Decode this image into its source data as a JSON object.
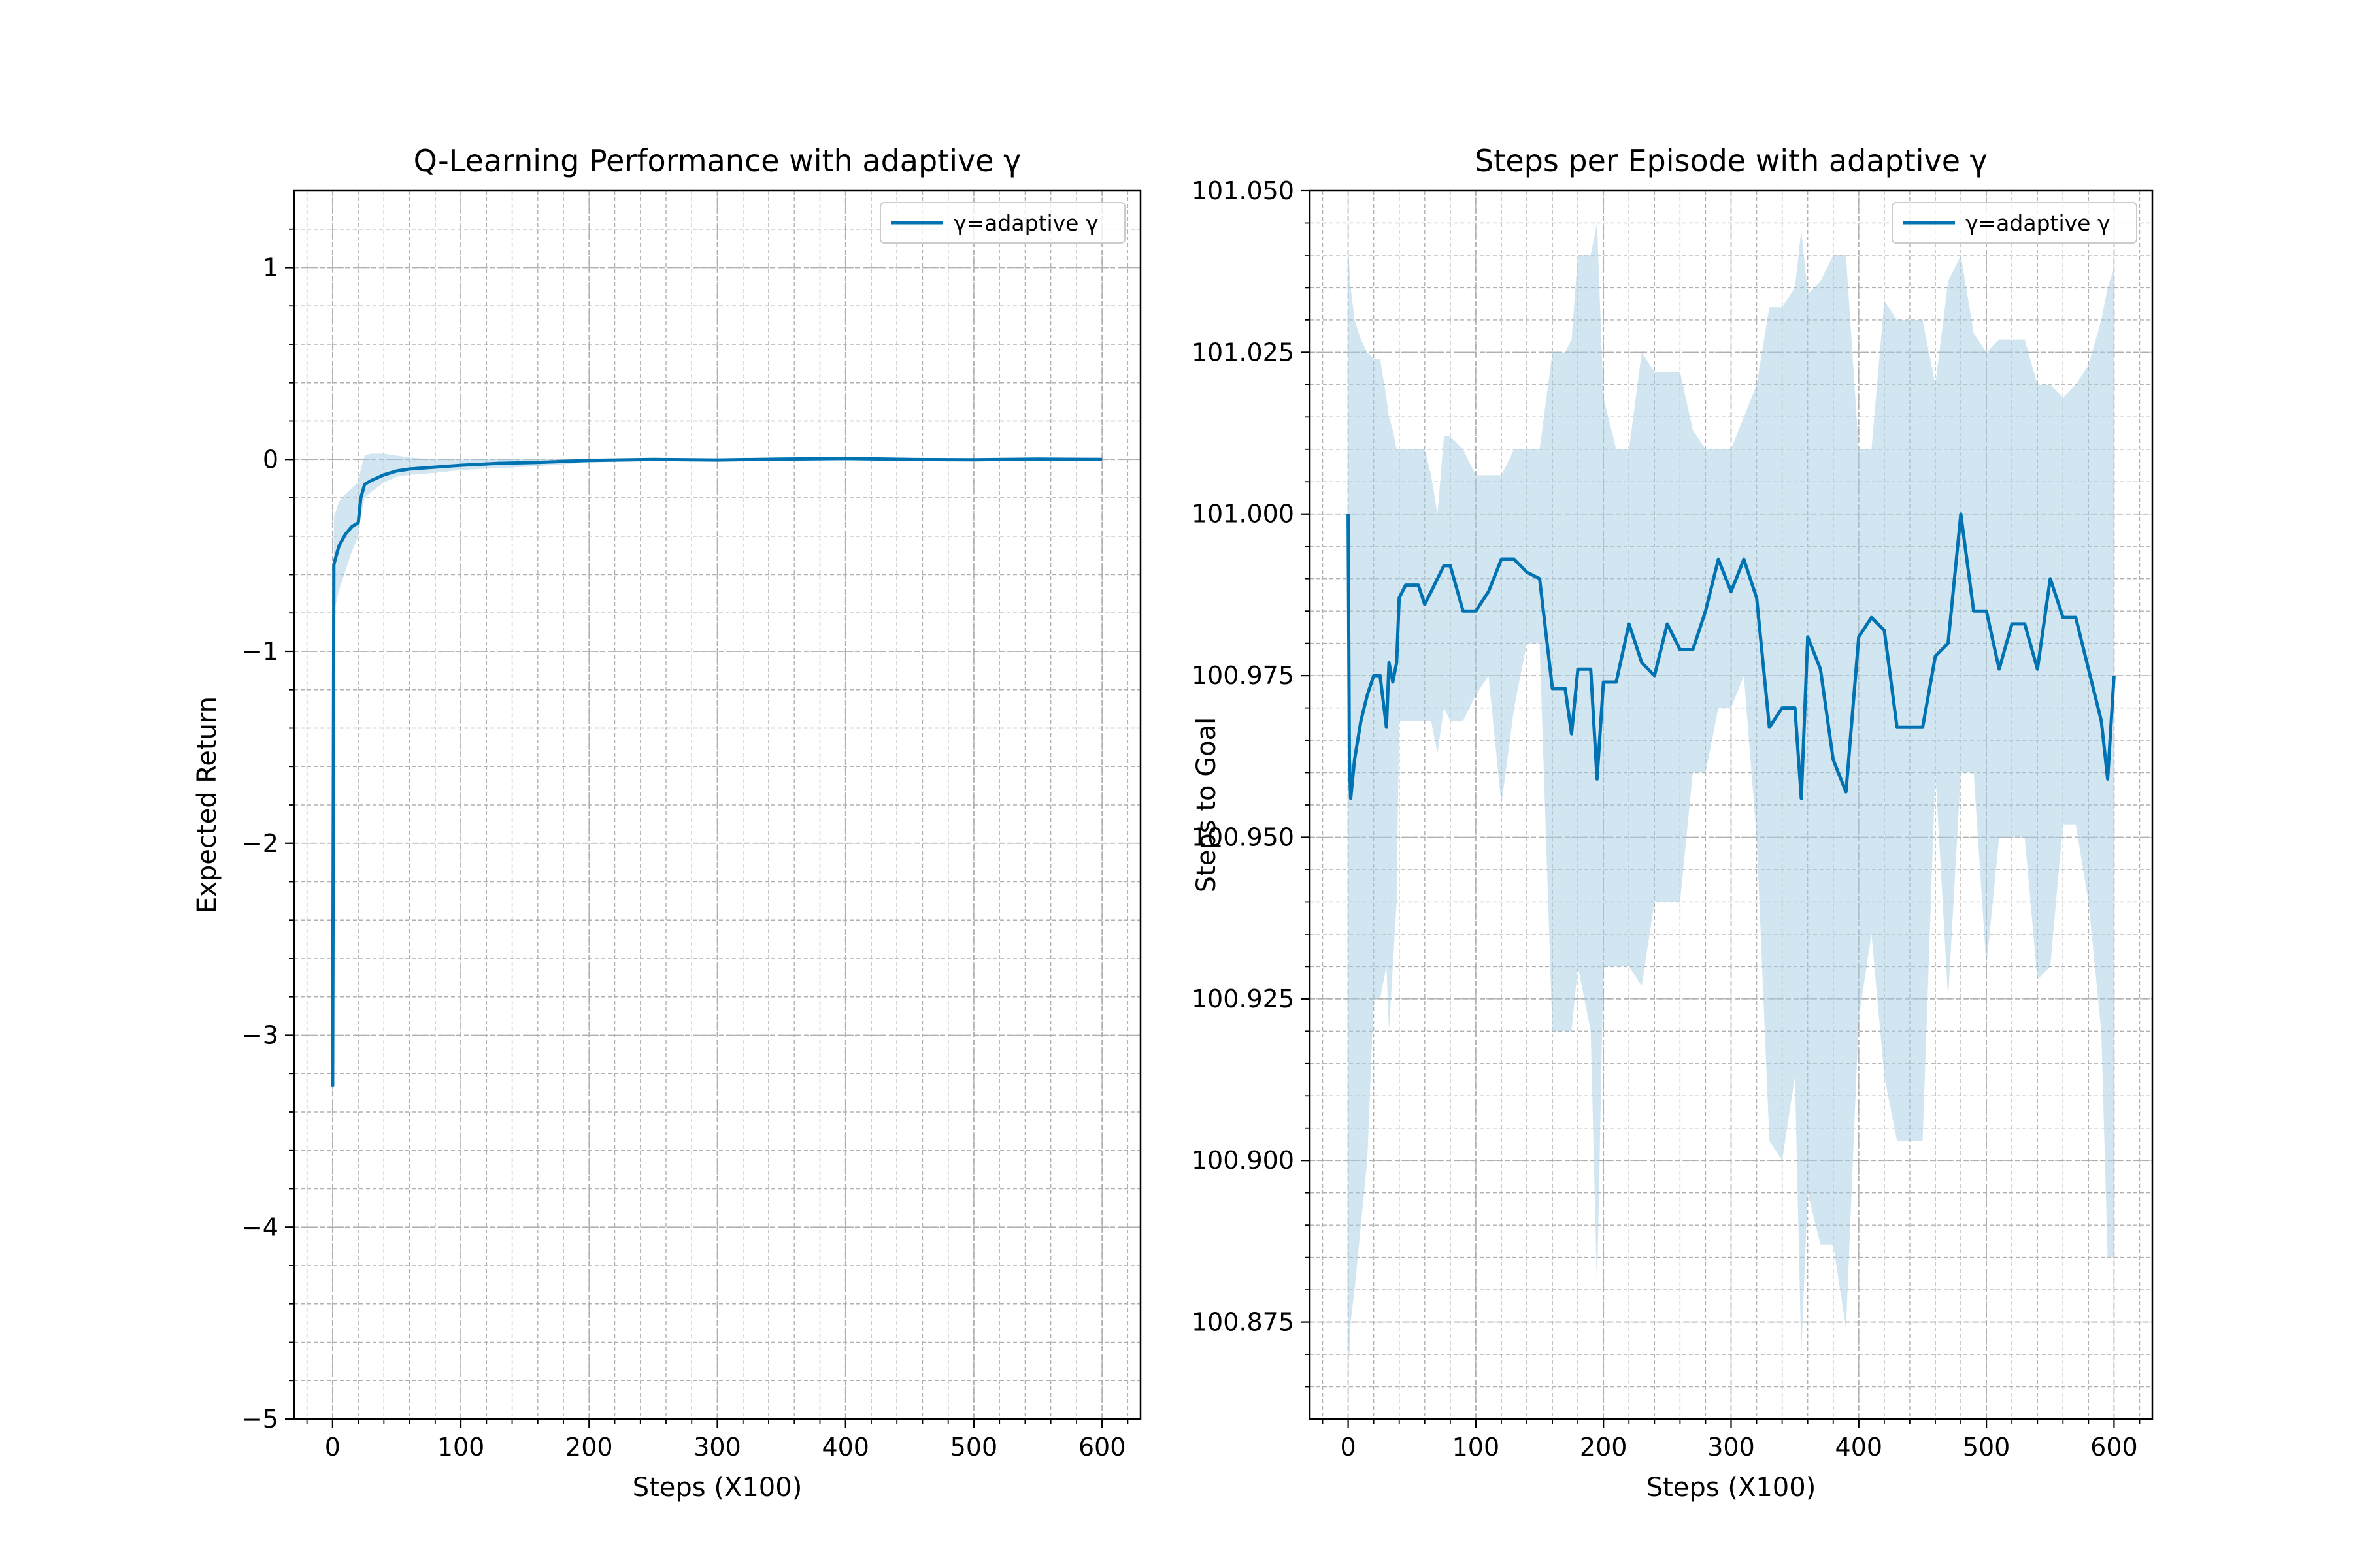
{
  "colors": {
    "line": "#0173b2",
    "band": "#a6cee3",
    "grid": "#b0b0b0",
    "axes": "#000000"
  },
  "chart_data": [
    {
      "type": "line",
      "title": "Q-Learning Performance with adaptive γ",
      "xlabel": "Steps (X100)",
      "ylabel": "Expected Return",
      "xlim": [
        -30,
        630
      ],
      "ylim": [
        -5,
        1.4
      ],
      "xticks": [
        0,
        100,
        200,
        300,
        400,
        500,
        600
      ],
      "xtick_labels": [
        "0",
        "100",
        "200",
        "300",
        "400",
        "500",
        "600"
      ],
      "yticks": [
        -5,
        -4,
        -3,
        -2,
        -1,
        0,
        1
      ],
      "ytick_labels": [
        "−5",
        "−4",
        "−3",
        "−2",
        "−1",
        "0",
        "1"
      ],
      "grid": true,
      "minor_grid": true,
      "legend_position": "top-right",
      "series": [
        {
          "name": "γ=adaptive γ",
          "band_alpha": 0.5,
          "x": [
            0,
            1,
            2,
            5,
            10,
            15,
            20,
            22,
            25,
            30,
            40,
            50,
            60,
            80,
            100,
            130,
            160,
            180,
            200,
            250,
            300,
            350,
            400,
            450,
            500,
            550,
            600
          ],
          "y": [
            -3.27,
            -0.55,
            -0.52,
            -0.45,
            -0.39,
            -0.35,
            -0.33,
            -0.2,
            -0.13,
            -0.11,
            -0.08,
            -0.06,
            -0.05,
            -0.04,
            -0.03,
            -0.02,
            -0.015,
            -0.01,
            -0.005,
            0.0,
            -0.003,
            0.002,
            0.005,
            0.0,
            -0.002,
            0.002,
            0.0
          ],
          "lower": [
            -3.27,
            -0.8,
            -0.77,
            -0.68,
            -0.58,
            -0.48,
            -0.4,
            -0.3,
            -0.2,
            -0.17,
            -0.12,
            -0.09,
            -0.08,
            -0.07,
            -0.055,
            -0.045,
            -0.035,
            -0.025,
            -0.015,
            -0.008,
            -0.01,
            -0.006,
            -0.005,
            -0.008,
            -0.01,
            -0.006,
            -0.005
          ],
          "upper": [
            -3.27,
            -0.3,
            -0.28,
            -0.22,
            -0.18,
            -0.15,
            -0.12,
            -0.05,
            0.02,
            0.03,
            0.03,
            0.02,
            0.01,
            0.0,
            0.0,
            0.005,
            0.0,
            0.003,
            0.005,
            0.008,
            0.004,
            0.008,
            0.012,
            0.006,
            0.004,
            0.008,
            0.005
          ]
        }
      ]
    },
    {
      "type": "line",
      "title": "Steps per Episode with adaptive γ",
      "xlabel": "Steps (X100)",
      "ylabel": "Steps to Goal",
      "xlim": [
        -30,
        630
      ],
      "ylim": [
        100.86,
        101.05
      ],
      "xticks": [
        0,
        100,
        200,
        300,
        400,
        500,
        600
      ],
      "xtick_labels": [
        "0",
        "100",
        "200",
        "300",
        "400",
        "500",
        "600"
      ],
      "yticks": [
        100.875,
        100.9,
        100.925,
        100.95,
        100.975,
        101.0,
        101.025,
        101.05
      ],
      "ytick_labels": [
        "100.875",
        "100.900",
        "100.925",
        "100.950",
        "100.975",
        "101.000",
        "101.025",
        "101.050"
      ],
      "grid": true,
      "minor_grid": true,
      "legend_position": "top-right",
      "series": [
        {
          "name": "γ=adaptive γ",
          "band_alpha": 0.5,
          "x": [
            0,
            1,
            2,
            5,
            10,
            15,
            20,
            25,
            30,
            32,
            35,
            38,
            40,
            45,
            50,
            55,
            60,
            65,
            70,
            75,
            80,
            90,
            100,
            110,
            120,
            130,
            140,
            150,
            160,
            170,
            175,
            180,
            190,
            195,
            200,
            210,
            220,
            230,
            240,
            250,
            260,
            270,
            280,
            290,
            300,
            310,
            320,
            330,
            340,
            350,
            355,
            360,
            370,
            380,
            390,
            400,
            410,
            420,
            430,
            440,
            450,
            460,
            470,
            480,
            490,
            500,
            510,
            520,
            530,
            540,
            550,
            560,
            570,
            580,
            590,
            595,
            600
          ],
          "y": [
            101.0,
            100.962,
            100.956,
            100.962,
            100.968,
            100.972,
            100.975,
            100.975,
            100.967,
            100.977,
            100.974,
            100.977,
            100.987,
            100.989,
            100.989,
            100.989,
            100.986,
            100.988,
            100.99,
            100.992,
            100.992,
            100.985,
            100.985,
            100.988,
            100.993,
            100.993,
            100.991,
            100.99,
            100.973,
            100.973,
            100.966,
            100.976,
            100.976,
            100.959,
            100.974,
            100.974,
            100.983,
            100.977,
            100.975,
            100.983,
            100.979,
            100.979,
            100.985,
            100.993,
            100.988,
            100.993,
            100.987,
            100.967,
            100.97,
            100.97,
            100.956,
            100.981,
            100.976,
            100.962,
            100.957,
            100.981,
            100.984,
            100.982,
            100.967,
            100.967,
            100.967,
            100.978,
            100.98,
            101.0,
            100.985,
            100.985,
            100.976,
            100.983,
            100.983,
            100.976,
            100.99,
            100.984,
            100.984,
            100.976,
            100.968,
            100.959,
            100.975
          ],
          "lower": [
            100.87,
            100.87,
            100.875,
            100.88,
            100.89,
            100.9,
            100.925,
            100.925,
            100.93,
            100.92,
            100.93,
            100.94,
            100.968,
            100.968,
            100.968,
            100.968,
            100.968,
            100.968,
            100.963,
            100.97,
            100.968,
            100.968,
            100.972,
            100.975,
            100.955,
            100.97,
            100.98,
            100.98,
            100.92,
            100.92,
            100.92,
            100.93,
            100.92,
            100.88,
            100.93,
            100.93,
            100.93,
            100.927,
            100.94,
            100.94,
            100.94,
            100.96,
            100.96,
            100.97,
            100.97,
            100.975,
            100.95,
            100.903,
            100.9,
            100.913,
            100.87,
            100.895,
            100.887,
            100.887,
            100.874,
            100.922,
            100.935,
            100.913,
            100.903,
            100.903,
            100.903,
            100.96,
            100.925,
            100.96,
            100.96,
            100.93,
            100.95,
            100.95,
            100.95,
            100.928,
            100.93,
            100.952,
            100.952,
            100.94,
            100.92,
            100.885,
            100.885
          ],
          "upper": [
            101.042,
            101.038,
            101.035,
            101.03,
            101.027,
            101.025,
            101.024,
            101.024,
            101.018,
            101.015,
            101.013,
            101.01,
            101.01,
            101.01,
            101.01,
            101.01,
            101.01,
            101.006,
            101.0,
            101.012,
            101.012,
            101.01,
            101.006,
            101.006,
            101.006,
            101.01,
            101.01,
            101.01,
            101.025,
            101.025,
            101.027,
            101.04,
            101.04,
            101.045,
            101.018,
            101.01,
            101.01,
            101.025,
            101.022,
            101.022,
            101.022,
            101.013,
            101.01,
            101.01,
            101.01,
            101.015,
            101.02,
            101.032,
            101.032,
            101.035,
            101.044,
            101.034,
            101.036,
            101.04,
            101.04,
            101.01,
            101.01,
            101.033,
            101.03,
            101.03,
            101.03,
            101.02,
            101.036,
            101.04,
            101.028,
            101.025,
            101.027,
            101.027,
            101.027,
            101.02,
            101.02,
            101.018,
            101.02,
            101.023,
            101.03,
            101.035,
            101.038
          ]
        }
      ]
    }
  ]
}
